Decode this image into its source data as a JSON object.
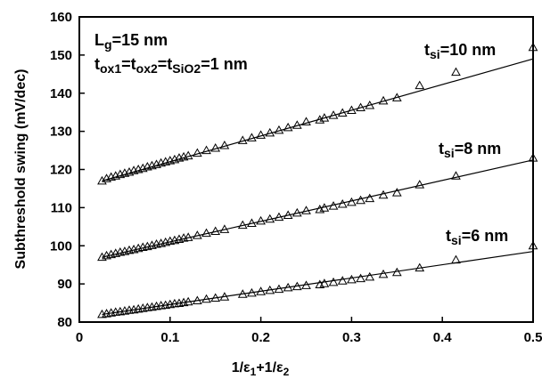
{
  "chart_data": {
    "type": "scatter",
    "xlabel": "1/ε1+1/ε2",
    "xlabel_parts": {
      "a": "1/ε",
      "a_sub": "1",
      "b": "+1/ε",
      "b_sub": "2"
    },
    "ylabel": "Subthreshold swing (mV/dec)",
    "xlim": [
      0,
      0.5
    ],
    "ylim": [
      80,
      160
    ],
    "x_ticks": [
      "0",
      "0.1",
      "0.2",
      "0.3",
      "0.4",
      "0.5"
    ],
    "y_ticks": [
      "80",
      "90",
      "100",
      "110",
      "120",
      "130",
      "140",
      "150",
      "160"
    ],
    "grid": false,
    "marker": "triangle-open",
    "annotations": {
      "lg": {
        "main": "L",
        "sub": "g",
        "rest": "=15 nm"
      },
      "tox": {
        "p1": "t",
        "s1": "ox1",
        "p2": "=t",
        "s2": "ox2",
        "p3": "=t",
        "s3": "SiO2",
        "p4": "=1 nm"
      }
    },
    "series": [
      {
        "label_main": "t",
        "label_sub": "si",
        "label_rest": "=10 nm",
        "fit": {
          "x0": 0.025,
          "y0": 117,
          "x1": 0.5,
          "y1": 149
        },
        "x": [
          0.025,
          0.03,
          0.035,
          0.04,
          0.045,
          0.05,
          0.055,
          0.06,
          0.065,
          0.07,
          0.075,
          0.08,
          0.085,
          0.09,
          0.095,
          0.1,
          0.105,
          0.11,
          0.115,
          0.12,
          0.13,
          0.14,
          0.15,
          0.16,
          0.18,
          0.19,
          0.2,
          0.21,
          0.22,
          0.23,
          0.24,
          0.25,
          0.265,
          0.27,
          0.28,
          0.29,
          0.3,
          0.31,
          0.32,
          0.335,
          0.35,
          0.375,
          0.415,
          0.5
        ],
        "y": [
          117,
          117.6,
          118,
          118.3,
          118.7,
          119,
          119.3,
          119.7,
          120,
          120.3,
          120.7,
          121,
          121.3,
          121.7,
          122,
          122.3,
          122.6,
          123,
          123.3,
          123.6,
          124.3,
          125,
          125.6,
          126.3,
          127.6,
          128.3,
          129,
          129.6,
          130.3,
          131,
          131.6,
          132.5,
          133,
          133.5,
          134.2,
          134.8,
          135.5,
          136.2,
          136.8,
          138,
          138.8,
          142,
          145.5,
          152
        ]
      },
      {
        "label_main": "t",
        "label_sub": "si",
        "label_rest": "=8 nm",
        "fit": {
          "x0": 0.025,
          "y0": 97,
          "x1": 0.5,
          "y1": 122.5
        },
        "x": [
          0.025,
          0.03,
          0.035,
          0.04,
          0.045,
          0.05,
          0.055,
          0.06,
          0.065,
          0.07,
          0.075,
          0.08,
          0.085,
          0.09,
          0.095,
          0.1,
          0.105,
          0.11,
          0.115,
          0.12,
          0.13,
          0.14,
          0.15,
          0.16,
          0.18,
          0.19,
          0.2,
          0.21,
          0.22,
          0.23,
          0.24,
          0.25,
          0.265,
          0.27,
          0.28,
          0.29,
          0.3,
          0.31,
          0.32,
          0.335,
          0.35,
          0.375,
          0.415,
          0.5
        ],
        "y": [
          97,
          97.4,
          97.7,
          98,
          98.3,
          98.5,
          98.8,
          99,
          99.3,
          99.6,
          99.8,
          100.1,
          100.4,
          100.6,
          100.9,
          101.2,
          101.4,
          101.7,
          102,
          102.2,
          102.7,
          103.3,
          103.8,
          104.3,
          105.4,
          105.9,
          106.5,
          107,
          107.5,
          108,
          108.6,
          109.2,
          109.5,
          109.9,
          110.4,
          110.9,
          111.4,
          111.9,
          112.4,
          113.3,
          113.9,
          116,
          118.3,
          123
        ]
      },
      {
        "label_main": "t",
        "label_sub": "si",
        "label_rest": "=6 nm",
        "fit": {
          "x0": 0.025,
          "y0": 82,
          "x1": 0.5,
          "y1": 98.5
        },
        "x": [
          0.025,
          0.03,
          0.035,
          0.04,
          0.045,
          0.05,
          0.055,
          0.06,
          0.065,
          0.07,
          0.075,
          0.08,
          0.085,
          0.09,
          0.095,
          0.1,
          0.105,
          0.11,
          0.115,
          0.12,
          0.13,
          0.14,
          0.15,
          0.16,
          0.18,
          0.19,
          0.2,
          0.21,
          0.22,
          0.23,
          0.24,
          0.25,
          0.265,
          0.27,
          0.28,
          0.29,
          0.3,
          0.31,
          0.32,
          0.335,
          0.35,
          0.375,
          0.415,
          0.5
        ],
        "y": [
          82,
          82.2,
          82.4,
          82.6,
          82.7,
          82.9,
          83.1,
          83.2,
          83.4,
          83.6,
          83.8,
          83.9,
          84.1,
          84.3,
          84.4,
          84.6,
          84.8,
          84.9,
          85.1,
          85.3,
          85.6,
          86,
          86.3,
          86.6,
          87.3,
          87.6,
          88,
          88.3,
          88.6,
          89,
          89.3,
          89.6,
          89.8,
          90.1,
          90.4,
          90.8,
          91.1,
          91.4,
          91.8,
          92.5,
          93,
          94.2,
          96.3,
          100
        ]
      }
    ]
  }
}
